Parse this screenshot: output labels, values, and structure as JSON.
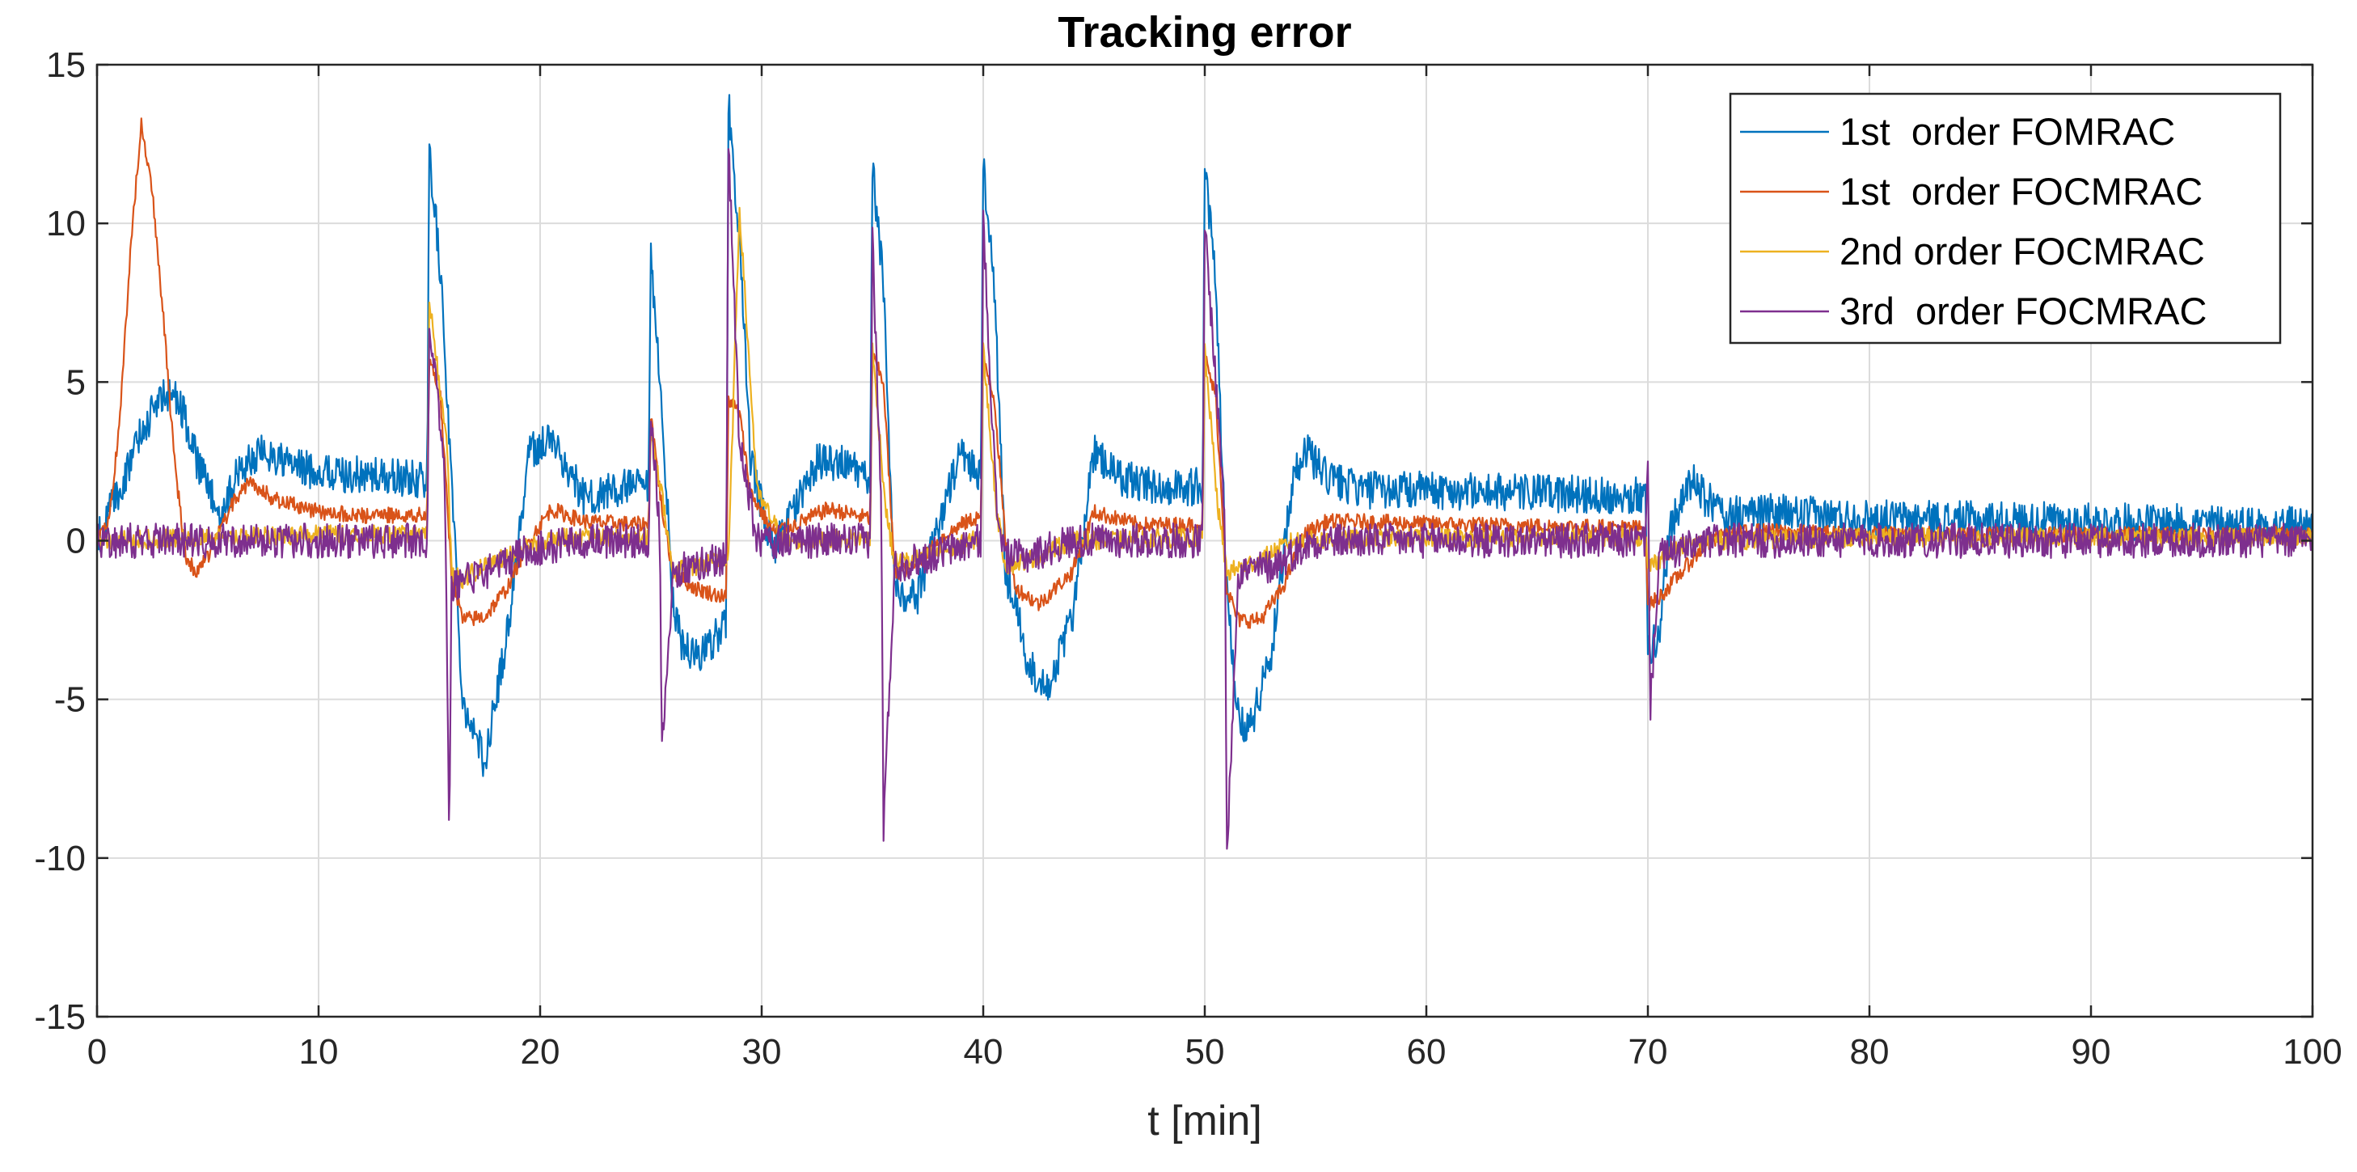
{
  "chart_data": {
    "type": "line",
    "title": "Tracking error",
    "xlabel": "t [min]",
    "ylabel": "",
    "xlim": [
      0,
      100
    ],
    "ylim": [
      -15,
      15
    ],
    "xticks": [
      0,
      10,
      20,
      30,
      40,
      50,
      60,
      70,
      80,
      90,
      100
    ],
    "yticks": [
      -15,
      -10,
      -5,
      0,
      5,
      10,
      15
    ],
    "xtick_labels": [
      "0",
      "10",
      "20",
      "30",
      "40",
      "50",
      "60",
      "70",
      "80",
      "90",
      "100"
    ],
    "ytick_labels": [
      "-15",
      "-10",
      "-5",
      "0",
      "5",
      "10",
      "15"
    ],
    "grid": true,
    "legend_position": "top-right",
    "series": [
      {
        "name": "1st  order FOMRAC",
        "color": "#0072BD",
        "noise": 0.6,
        "x": [
          0,
          0.5,
          1.0,
          2.0,
          3.0,
          3.7,
          4.5,
          5.5,
          6.5,
          7.5,
          9,
          11,
          13,
          14.9,
          15.0,
          15.5,
          16.0,
          16.5,
          17.5,
          18.5,
          19.5,
          20.5,
          22,
          24,
          24.9,
          25.0,
          25.5,
          26.0,
          26.5,
          27.5,
          28.4,
          28.5,
          29.0,
          29.5,
          30.5,
          31.5,
          32.5,
          33.5,
          34.9,
          35.0,
          35.5,
          36.0,
          37.0,
          38.0,
          39.0,
          39.9,
          40.0,
          40.5,
          41.0,
          41.5,
          42.0,
          43.0,
          44.0,
          45.0,
          46.0,
          48,
          49.9,
          50.0,
          50.5,
          51.0,
          51.5,
          52.0,
          53.0,
          54.0,
          54.5,
          55.5,
          57,
          60,
          65,
          69.9,
          70.0,
          70.5,
          71.0,
          72.0,
          72.5,
          73.5,
          75,
          80,
          90,
          100
        ],
        "y": [
          0,
          0.8,
          1.5,
          3.5,
          4.6,
          4.5,
          2.5,
          0.8,
          2.3,
          2.8,
          2.3,
          2.1,
          2.0,
          1.9,
          12.3,
          8.5,
          2.0,
          -5.0,
          -7.0,
          -3.0,
          2.8,
          3.2,
          1.3,
          1.7,
          1.6,
          8.8,
          4.0,
          -2.0,
          -3.5,
          -3.5,
          -2.5,
          13.8,
          9.5,
          2.5,
          -0.3,
          1.0,
          2.5,
          2.5,
          1.9,
          11.8,
          8.0,
          -1.5,
          -1.8,
          0.5,
          2.8,
          2.0,
          11.8,
          8.0,
          -1.0,
          -2.0,
          -4.0,
          -4.5,
          -2.5,
          2.8,
          2.0,
          1.7,
          1.7,
          11.8,
          8.0,
          -1.5,
          -5.5,
          -6.0,
          -3.5,
          2.0,
          2.9,
          2.0,
          1.6,
          1.6,
          1.5,
          1.4,
          -3.5,
          -3.0,
          0.5,
          1.9,
          1.4,
          0.8,
          0.9,
          0.7,
          0.6,
          0.5
        ]
      },
      {
        "name": "1st  order FOCMRAC",
        "color": "#D95319",
        "noise": 0.25,
        "x": [
          0,
          0.5,
          1.0,
          1.5,
          2.0,
          2.5,
          3.0,
          3.5,
          4.0,
          4.5,
          5.0,
          5.5,
          6.0,
          6.5,
          7.0,
          8.0,
          10,
          12,
          14.9,
          15.0,
          15.5,
          16.0,
          16.5,
          17.5,
          18.5,
          19.5,
          20.5,
          22,
          24.9,
          25.0,
          25.5,
          26.0,
          27.0,
          28.4,
          28.5,
          29.0,
          29.5,
          30.5,
          31.5,
          33,
          34.9,
          35.0,
          35.5,
          36.0,
          37.0,
          38.0,
          39.0,
          39.9,
          40.0,
          40.5,
          41.0,
          41.5,
          42.5,
          44.0,
          45.0,
          47,
          49.9,
          50.0,
          50.5,
          51.0,
          51.5,
          52.5,
          53.5,
          54.5,
          55.5,
          57,
          62,
          69.9,
          70.0,
          70.5,
          71.5,
          72.5,
          73.5,
          75,
          80,
          90,
          100
        ],
        "y": [
          0,
          0.5,
          3.5,
          9.0,
          13.2,
          11.0,
          7.0,
          2.5,
          -0.5,
          -1.0,
          -0.5,
          0.3,
          1.0,
          1.6,
          1.8,
          1.3,
          0.9,
          0.8,
          0.8,
          5.8,
          4.5,
          -1.0,
          -2.5,
          -2.4,
          -1.5,
          0.0,
          1.0,
          0.6,
          0.5,
          4.0,
          1.0,
          -1.0,
          -1.5,
          -1.8,
          4.5,
          4.0,
          1.5,
          0.3,
          0.5,
          1.0,
          0.7,
          5.8,
          5.0,
          -1.0,
          -0.8,
          0.0,
          0.5,
          0.8,
          5.8,
          4.5,
          0.0,
          -1.5,
          -2.0,
          -1.0,
          0.9,
          0.5,
          0.5,
          5.8,
          4.5,
          -1.5,
          -2.5,
          -2.5,
          -1.5,
          0.2,
          0.6,
          0.6,
          0.5,
          0.4,
          -2.0,
          -1.8,
          -1.0,
          -0.2,
          0.2,
          0.3,
          0.2,
          0.2,
          0.2
        ]
      },
      {
        "name": "2nd order FOCMRAC",
        "color": "#EDB120",
        "noise": 0.3,
        "x": [
          0,
          5,
          10,
          14.9,
          15.0,
          15.8,
          16.0,
          16.5,
          17.5,
          19.0,
          21,
          24.9,
          25.0,
          25.6,
          26.0,
          27.5,
          28.5,
          29.0,
          29.8,
          31.0,
          34.9,
          35.0,
          35.6,
          36.0,
          37.5,
          39.9,
          40.0,
          40.6,
          41.0,
          42.5,
          44,
          49.9,
          50.0,
          50.6,
          51.0,
          52.5,
          54,
          60,
          69.9,
          70.0,
          70.5,
          71.5,
          73,
          80,
          90,
          100
        ],
        "y": [
          0,
          0.1,
          0.2,
          0.2,
          7.5,
          3.0,
          -1.0,
          -1.2,
          -0.8,
          -0.3,
          0.1,
          0.1,
          3.5,
          1.0,
          -1.0,
          -0.7,
          -0.6,
          10.5,
          1.5,
          0.0,
          0.1,
          6.0,
          1.0,
          -0.7,
          -0.5,
          0.1,
          6.0,
          1.0,
          -0.8,
          -0.5,
          0.0,
          0.1,
          6.0,
          1.0,
          -1.0,
          -0.6,
          0.0,
          0.1,
          0.1,
          -0.8,
          -0.6,
          -0.2,
          0.0,
          0.1,
          0.1,
          0.1
        ]
      },
      {
        "name": "3rd  order FOCMRAC",
        "color": "#7E2F8E",
        "noise": 0.55,
        "x": [
          0,
          5,
          10,
          14.9,
          15.0,
          15.7,
          15.9,
          16.0,
          16.5,
          17.5,
          19.5,
          22,
          24.9,
          25.0,
          25.4,
          25.5,
          26.0,
          27.0,
          28.4,
          28.5,
          29.0,
          29.8,
          31.0,
          34.9,
          35.0,
          35.4,
          35.5,
          36.0,
          37.5,
          39.9,
          40.0,
          40.6,
          41.0,
          42.0,
          44,
          49.9,
          50.0,
          50.9,
          51.0,
          51.5,
          53.0,
          55,
          60,
          69.9,
          70.0,
          70.1,
          70.5,
          71.5,
          73,
          80,
          90,
          100
        ],
        "y": [
          0,
          0,
          0,
          0,
          7.0,
          2.0,
          -9.6,
          -1.5,
          -1.3,
          -1.0,
          -0.3,
          0.0,
          0.0,
          4.0,
          0.5,
          -6.5,
          -1.0,
          -0.8,
          -0.5,
          12.5,
          3.0,
          0.0,
          0.0,
          0.0,
          9.5,
          1.0,
          -9.0,
          -0.8,
          -0.5,
          0.0,
          10.0,
          1.0,
          -0.5,
          -0.5,
          0.0,
          0.0,
          10.0,
          1.0,
          -10.0,
          -1.0,
          -0.8,
          0.0,
          0.0,
          0.0,
          3.0,
          -5.4,
          -0.5,
          -0.3,
          0.0,
          0.0,
          0.0,
          0.0
        ]
      }
    ]
  }
}
